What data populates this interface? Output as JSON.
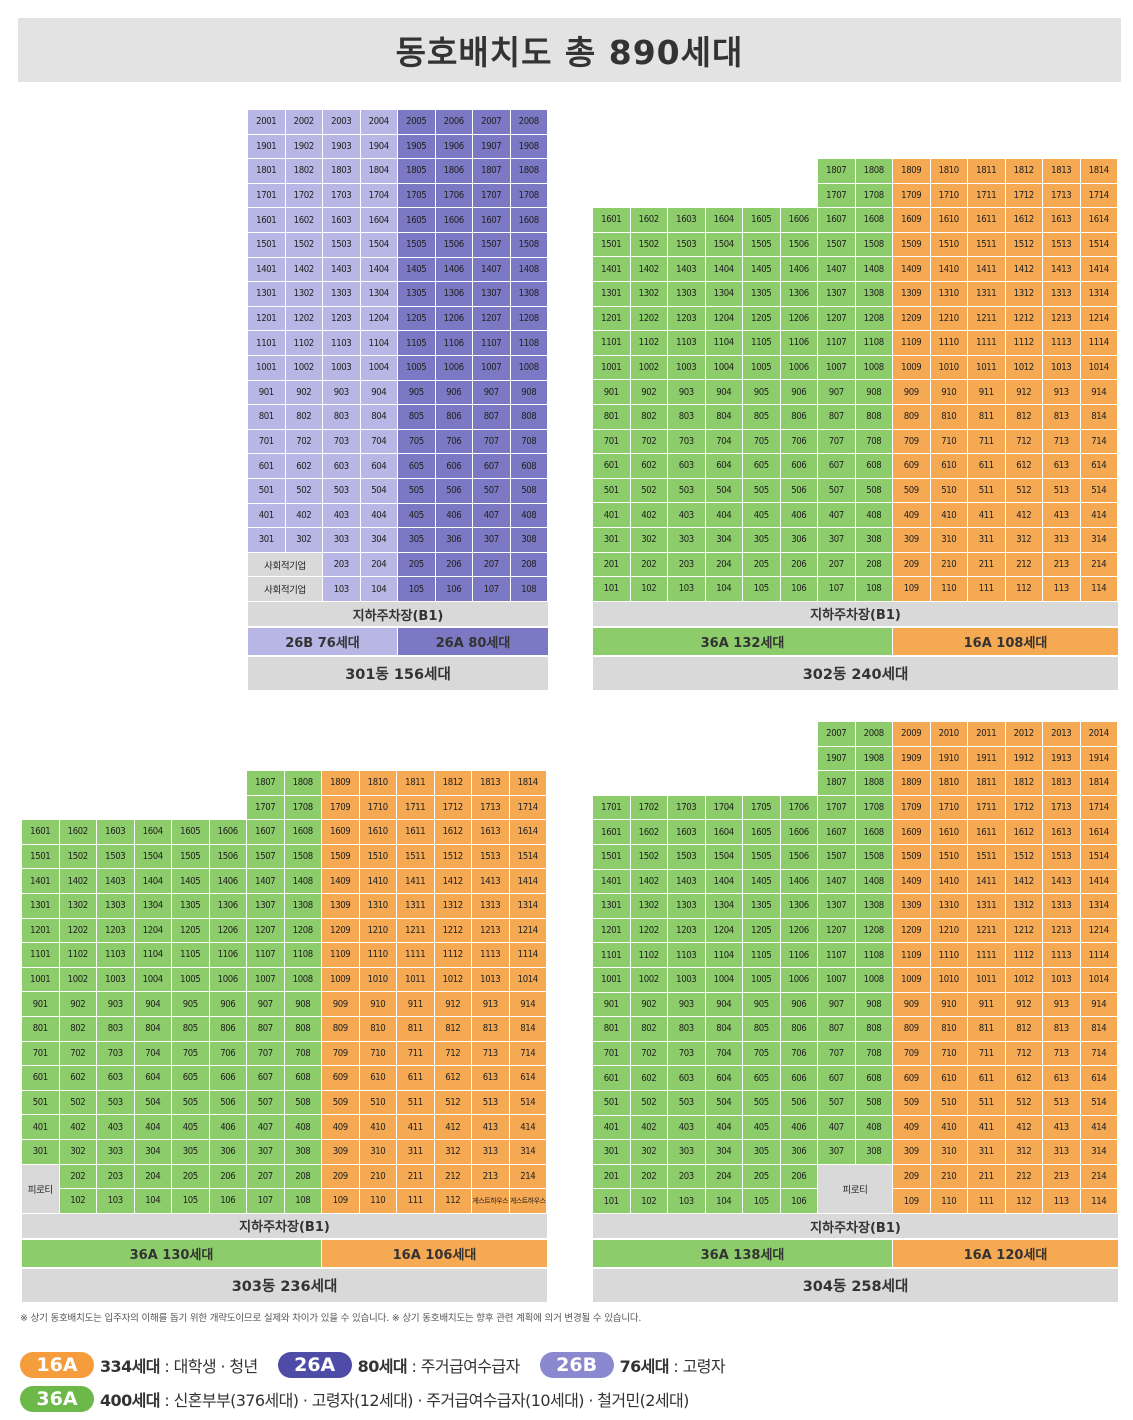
{
  "title": "동호배치도  총 890세대",
  "colors": {
    "16A": "#f6a953",
    "26A": "#7b79c4",
    "26B": "#b7b6e4",
    "36A": "#8dcc6a",
    "gray": "#d9d9d9"
  },
  "parking_label": "지하주차장(B1)",
  "buildings": [
    {
      "id": "301",
      "summary": "301동  156세대",
      "splits": [
        {
          "label": "26B 76세대",
          "type": "26B"
        },
        {
          "label": "26A 80세대",
          "type": "26A"
        }
      ],
      "column_types": [
        "26B",
        "26B",
        "26B",
        "26B",
        "26A",
        "26A",
        "26A",
        "26A"
      ],
      "grid": {
        "floors": [
          20,
          19,
          18,
          17,
          16,
          15,
          14,
          13,
          12,
          11,
          10,
          9,
          8,
          7,
          6,
          5,
          4,
          3,
          2,
          1
        ],
        "cols": 8,
        "start_col": [
          1,
          1,
          1,
          1,
          1,
          1,
          1,
          1,
          1,
          1,
          1,
          1,
          1,
          1,
          1,
          1,
          1,
          1,
          3,
          3
        ],
        "special": [
          {
            "floor": 2,
            "col_start": 1,
            "col_span": 2,
            "label": "사회적기업"
          },
          {
            "floor": 1,
            "col_start": 1,
            "col_span": 2,
            "label": "사회적기업"
          }
        ]
      }
    },
    {
      "id": "302",
      "summary": "302동  240세대",
      "splits": [
        {
          "label": "36A 132세대",
          "type": "36A"
        },
        {
          "label": "16A 108세대",
          "type": "16A"
        }
      ],
      "column_types": [
        "36A",
        "36A",
        "36A",
        "36A",
        "36A",
        "36A",
        "36A",
        "36A",
        "16A",
        "16A",
        "16A",
        "16A",
        "16A",
        "16A"
      ],
      "grid": {
        "floors": [
          18,
          17,
          16,
          15,
          14,
          13,
          12,
          11,
          10,
          9,
          8,
          7,
          6,
          5,
          4,
          3,
          2,
          1
        ],
        "cols": 14,
        "start_col": [
          7,
          7,
          1,
          1,
          1,
          1,
          1,
          1,
          1,
          1,
          1,
          1,
          1,
          1,
          1,
          1,
          1,
          1
        ],
        "special": []
      }
    },
    {
      "id": "303",
      "summary": "303동  236세대",
      "splits": [
        {
          "label": "36A 130세대",
          "type": "36A"
        },
        {
          "label": "16A 106세대",
          "type": "16A"
        }
      ],
      "column_types": [
        "36A",
        "36A",
        "36A",
        "36A",
        "36A",
        "36A",
        "36A",
        "36A",
        "16A",
        "16A",
        "16A",
        "16A",
        "16A",
        "16A"
      ],
      "grid": {
        "floors": [
          18,
          17,
          16,
          15,
          14,
          13,
          12,
          11,
          10,
          9,
          8,
          7,
          6,
          5,
          4,
          3,
          2,
          1
        ],
        "cols": 14,
        "start_col": [
          7,
          7,
          1,
          1,
          1,
          1,
          1,
          1,
          1,
          1,
          1,
          1,
          1,
          1,
          1,
          1,
          2,
          2
        ],
        "special": [
          {
            "floor": 2,
            "col_start": 1,
            "col_span": 1,
            "row_span": 2,
            "label": "피로티"
          },
          {
            "floor": 1,
            "col_start": 13,
            "col_span": 1,
            "label": "게스트하우스",
            "small": true
          },
          {
            "floor": 1,
            "col_start": 14,
            "col_span": 1,
            "label": "게스트하우스",
            "small": true
          }
        ]
      }
    },
    {
      "id": "304",
      "summary": "304동  258세대",
      "splits": [
        {
          "label": "36A 138세대",
          "type": "36A"
        },
        {
          "label": "16A 120세대",
          "type": "16A"
        }
      ],
      "column_types": [
        "36A",
        "36A",
        "36A",
        "36A",
        "36A",
        "36A",
        "36A",
        "36A",
        "16A",
        "16A",
        "16A",
        "16A",
        "16A",
        "16A"
      ],
      "grid": {
        "floors": [
          20,
          19,
          18,
          17,
          16,
          15,
          14,
          13,
          12,
          11,
          10,
          9,
          8,
          7,
          6,
          5,
          4,
          3,
          2,
          1
        ],
        "cols": 14,
        "start_col": [
          7,
          7,
          7,
          1,
          1,
          1,
          1,
          1,
          1,
          1,
          1,
          1,
          1,
          1,
          1,
          1,
          1,
          1,
          1,
          1
        ],
        "special": [
          {
            "floor": 2,
            "col_start": 7,
            "col_span": 2,
            "row_span": 2,
            "label": "피로티"
          }
        ]
      }
    }
  ],
  "notes": "※ 상기 동호배치도는 입주자의 이해를 돕기 위한 개략도이므로 실제와 차이가 있을 수 있습니다.  ※ 상기 동호배치도는 향후 관련 계획에 의거 변경될 수 있습니다.",
  "legend": [
    {
      "badge": "16A",
      "count": "334세대",
      "desc": " : 대학생 · 청년"
    },
    {
      "badge": "26A",
      "count": "80세대",
      "desc": " : 주거급여수급자"
    },
    {
      "badge": "26B",
      "count": "76세대",
      "desc": " : 고령자"
    },
    {
      "badge": "36A",
      "count": "400세대",
      "desc": " : 신혼부부(376세대) · 고령자(12세대) · 주거급여수급자(10세대) · 철거민(2세대)"
    }
  ]
}
